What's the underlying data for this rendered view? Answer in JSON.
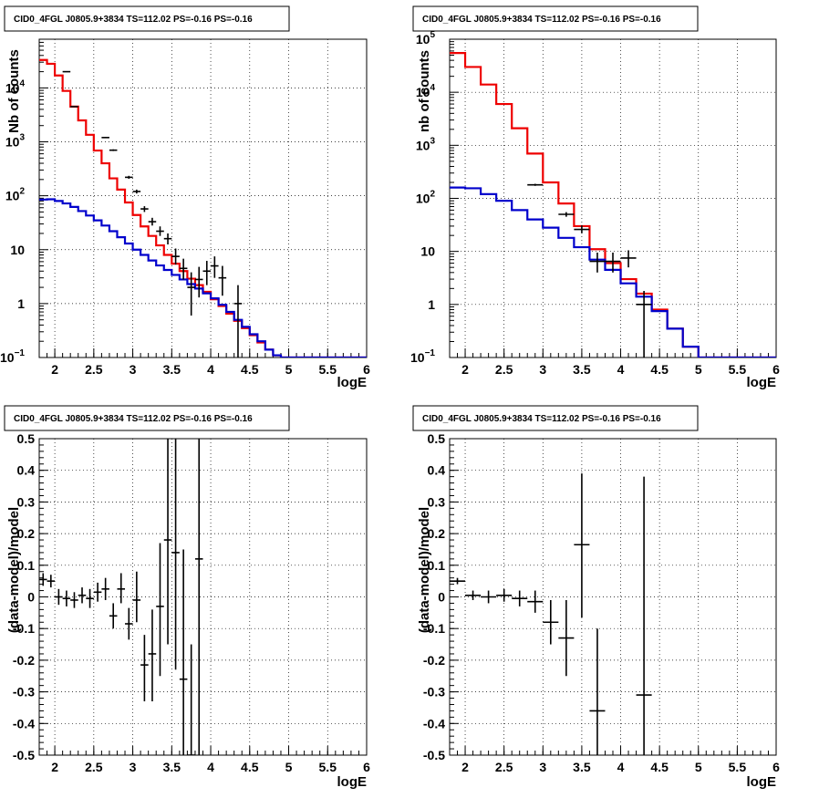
{
  "chart_data": [
    {
      "type": "step-histogram",
      "title": "CID0_4FGL J0805.9+3834 TS=112.02 PS=-0.16 PS=-0.16",
      "xlabel": "logE",
      "ylabel": "Nb of counts",
      "xlim": [
        1.8,
        6.0
      ],
      "ylim": [
        0.1,
        80000
      ],
      "yscale": "log",
      "grid": true,
      "xticks": [
        "2",
        "2.5",
        "3",
        "3.5",
        "4",
        "4.5",
        "5",
        "5.5",
        "6"
      ],
      "yticks": [
        {
          "v": 0.1,
          "t": "10",
          "sup": "−1"
        },
        {
          "v": 1,
          "t": "1"
        },
        {
          "v": 10,
          "t": "10"
        },
        {
          "v": 100,
          "t": "10",
          "sup": "2"
        },
        {
          "v": 1000,
          "t": "10",
          "sup": "3"
        },
        {
          "v": 10000,
          "t": "10",
          "sup": "4"
        }
      ],
      "colors": {
        "total": "#ee0000",
        "component": "#0000cc",
        "data": "#000000"
      },
      "bin_edges": [
        1.8,
        1.9,
        2.0,
        2.1,
        2.2,
        2.3,
        2.4,
        2.5,
        2.6,
        2.7,
        2.8,
        2.9,
        3.0,
        3.1,
        3.2,
        3.3,
        3.4,
        3.5,
        3.6,
        3.7,
        3.8,
        3.9,
        4.0,
        4.1,
        4.2,
        4.3,
        4.4,
        4.5,
        4.6,
        4.7,
        4.8,
        4.9,
        5.0,
        5.1,
        5.2,
        5.3,
        5.4,
        5.5,
        5.6,
        5.7,
        5.8,
        5.9,
        6.0
      ],
      "series": [
        {
          "role": "total",
          "values": [
            33000,
            28000,
            17000,
            8800,
            4500,
            2500,
            1350,
            690,
            400,
            210,
            130,
            75,
            44,
            27,
            18,
            12,
            8,
            5.5,
            4,
            2.9,
            2.2,
            1.65,
            1.2,
            0.9,
            0.65,
            0.48,
            0.35,
            0.26,
            0.19,
            0.14,
            0.11,
            0.1,
            0.1,
            0.1,
            0.1,
            0.1,
            0.1,
            0.1,
            0.1,
            0.1,
            0.1,
            0.1
          ]
        },
        {
          "role": "component",
          "values": [
            85,
            86,
            80,
            72,
            62,
            52,
            43,
            35,
            28,
            22,
            17,
            13,
            10,
            8,
            6.3,
            5.1,
            4.2,
            3.4,
            2.8,
            2.3,
            1.9,
            1.55,
            1.25,
            0.95,
            0.7,
            0.5,
            0.37,
            0.27,
            0.2,
            0.14,
            0.11,
            0.1,
            0.1,
            0.1,
            0.1,
            0.1,
            0.1,
            0.1,
            0.1,
            0.1,
            0.1,
            0.1
          ]
        }
      ],
      "points": [
        {
          "x": 2.15,
          "y": 20000,
          "xe": 0.05,
          "ylo": 19800,
          "yhi": 20200
        },
        {
          "x": 2.25,
          "y": 4500,
          "xe": 0.05,
          "ylo": 4430,
          "yhi": 4570
        },
        {
          "x": 2.65,
          "y": 1200,
          "xe": 0.05,
          "ylo": 1170,
          "yhi": 1230
        },
        {
          "x": 2.75,
          "y": 700,
          "xe": 0.05,
          "ylo": 675,
          "yhi": 725
        },
        {
          "x": 2.95,
          "y": 220,
          "xe": 0.05,
          "ylo": 206,
          "yhi": 234
        },
        {
          "x": 3.05,
          "y": 120,
          "xe": 0.05,
          "ylo": 110,
          "yhi": 130
        },
        {
          "x": 3.15,
          "y": 57,
          "xe": 0.05,
          "ylo": 50,
          "yhi": 64
        },
        {
          "x": 3.25,
          "y": 33,
          "xe": 0.05,
          "ylo": 28,
          "yhi": 39
        },
        {
          "x": 3.35,
          "y": 22,
          "xe": 0.05,
          "ylo": 18,
          "yhi": 27
        },
        {
          "x": 3.45,
          "y": 16,
          "xe": 0.05,
          "ylo": 12.5,
          "yhi": 20
        },
        {
          "x": 3.55,
          "y": 7.5,
          "xe": 0.05,
          "ylo": 5.3,
          "yhi": 10.5
        },
        {
          "x": 3.65,
          "y": 4.5,
          "xe": 0.05,
          "ylo": 2.8,
          "yhi": 6.8
        },
        {
          "x": 3.75,
          "y": 2.0,
          "xe": 0.05,
          "ylo": 0.6,
          "yhi": 3.8
        },
        {
          "x": 3.85,
          "y": 2.8,
          "xe": 0.05,
          "ylo": 1.3,
          "yhi": 4.8
        },
        {
          "x": 3.95,
          "y": 4.0,
          "xe": 0.05,
          "ylo": 2.2,
          "yhi": 6.2
        },
        {
          "x": 4.05,
          "y": 5.0,
          "xe": 0.05,
          "ylo": 3.0,
          "yhi": 7.5
        },
        {
          "x": 4.15,
          "y": 3.0,
          "xe": 0.05,
          "ylo": 1.4,
          "yhi": 5.0
        },
        {
          "x": 4.35,
          "y": 1.0,
          "xe": 0.05,
          "ylo": 0.1,
          "yhi": 2.2
        }
      ]
    },
    {
      "type": "step-histogram",
      "title": "CID0_4FGL J0805.9+3834 TS=112.02 PS=-0.16 PS=-0.16",
      "xlabel": "logE",
      "ylabel": "nb of counts",
      "xlim": [
        1.8,
        6.0
      ],
      "ylim": [
        0.1,
        100000
      ],
      "yscale": "log",
      "grid": true,
      "xticks": [
        "2",
        "2.5",
        "3",
        "3.5",
        "4",
        "4.5",
        "5",
        "5.5",
        "6"
      ],
      "yticks": [
        {
          "v": 0.1,
          "t": "10",
          "sup": "−1"
        },
        {
          "v": 1,
          "t": "1"
        },
        {
          "v": 10,
          "t": "10"
        },
        {
          "v": 100,
          "t": "10",
          "sup": "2"
        },
        {
          "v": 1000,
          "t": "10",
          "sup": "3"
        },
        {
          "v": 10000,
          "t": "10",
          "sup": "4"
        },
        {
          "v": 100000,
          "t": "10",
          "sup": "5"
        }
      ],
      "colors": {
        "total": "#ee0000",
        "component": "#0000cc",
        "data": "#000000"
      },
      "bin_edges": [
        1.8,
        2.0,
        2.2,
        2.4,
        2.6,
        2.8,
        3.0,
        3.2,
        3.4,
        3.6,
        3.8,
        4.0,
        4.2,
        4.4,
        4.6,
        4.8,
        5.0,
        5.2,
        5.4,
        5.6,
        5.8,
        6.0
      ],
      "series": [
        {
          "role": "total",
          "values": [
            55000,
            30000,
            14000,
            6000,
            2100,
            700,
            200,
            80,
            30,
            11,
            6,
            3,
            1.6,
            0.8,
            0.35,
            0.16,
            0.1,
            0.1,
            0.1,
            0.1,
            0.1
          ]
        },
        {
          "role": "component",
          "values": [
            160,
            155,
            120,
            90,
            60,
            40,
            28,
            18,
            12,
            7,
            4.5,
            2.5,
            1.4,
            0.75,
            0.35,
            0.16,
            0.1,
            0.1,
            0.1,
            0.1,
            0.1
          ]
        }
      ],
      "points": [
        {
          "x": 2.9,
          "y": 180,
          "xe": 0.1,
          "ylo": 172,
          "yhi": 188
        },
        {
          "x": 3.3,
          "y": 50,
          "xe": 0.1,
          "ylo": 45,
          "yhi": 55
        },
        {
          "x": 3.5,
          "y": 26,
          "xe": 0.1,
          "ylo": 22,
          "yhi": 31
        },
        {
          "x": 3.7,
          "y": 6.5,
          "xe": 0.1,
          "ylo": 4.0,
          "yhi": 9.5
        },
        {
          "x": 3.9,
          "y": 6.5,
          "xe": 0.1,
          "ylo": 4.0,
          "yhi": 9.5
        },
        {
          "x": 4.1,
          "y": 7.5,
          "xe": 0.1,
          "ylo": 5.0,
          "yhi": 10.5
        },
        {
          "x": 4.3,
          "y": 1.0,
          "xe": 0.1,
          "ylo": 0.1,
          "yhi": 1.8
        }
      ]
    },
    {
      "type": "scatter",
      "title": "CID0_4FGL J0805.9+3834 TS=112.02 PS=-0.16 PS=-0.16",
      "xlabel": "logE",
      "ylabel": "(data-model)/model",
      "xlim": [
        1.8,
        6.0
      ],
      "ylim": [
        -0.5,
        0.5
      ],
      "grid": true,
      "xticks": [
        "2",
        "2.5",
        "3",
        "3.5",
        "4",
        "4.5",
        "5",
        "5.5",
        "6"
      ],
      "yticks": [
        "-0.5",
        "-0.4",
        "-0.3",
        "-0.2",
        "-0.1",
        "0",
        "0.1",
        "0.2",
        "0.3",
        "0.4",
        "0.5"
      ],
      "points": [
        {
          "x": 1.85,
          "y": 0.055,
          "xe": 0.05,
          "ylo": 0.035,
          "yhi": 0.075
        },
        {
          "x": 1.95,
          "y": 0.05,
          "xe": 0.05,
          "ylo": 0.03,
          "yhi": 0.07
        },
        {
          "x": 2.05,
          "y": 0.0,
          "xe": 0.05,
          "ylo": -0.025,
          "yhi": 0.025
        },
        {
          "x": 2.15,
          "y": -0.005,
          "xe": 0.05,
          "ylo": -0.03,
          "yhi": 0.02
        },
        {
          "x": 2.25,
          "y": -0.01,
          "xe": 0.05,
          "ylo": -0.035,
          "yhi": 0.015
        },
        {
          "x": 2.35,
          "y": 0.005,
          "xe": 0.05,
          "ylo": -0.02,
          "yhi": 0.03
        },
        {
          "x": 2.45,
          "y": -0.005,
          "xe": 0.05,
          "ylo": -0.035,
          "yhi": 0.025
        },
        {
          "x": 2.55,
          "y": 0.015,
          "xe": 0.05,
          "ylo": -0.015,
          "yhi": 0.045
        },
        {
          "x": 2.65,
          "y": 0.025,
          "xe": 0.05,
          "ylo": -0.01,
          "yhi": 0.06
        },
        {
          "x": 2.75,
          "y": -0.06,
          "xe": 0.05,
          "ylo": -0.1,
          "yhi": -0.02
        },
        {
          "x": 2.85,
          "y": 0.025,
          "xe": 0.05,
          "ylo": -0.02,
          "yhi": 0.075
        },
        {
          "x": 2.95,
          "y": -0.085,
          "xe": 0.05,
          "ylo": -0.135,
          "yhi": -0.035
        },
        {
          "x": 3.05,
          "y": -0.01,
          "xe": 0.05,
          "ylo": -0.08,
          "yhi": 0.08
        },
        {
          "x": 3.15,
          "y": -0.215,
          "xe": 0.05,
          "ylo": -0.33,
          "yhi": -0.12
        },
        {
          "x": 3.25,
          "y": -0.18,
          "xe": 0.05,
          "ylo": -0.33,
          "yhi": -0.04
        },
        {
          "x": 3.35,
          "y": -0.03,
          "xe": 0.05,
          "ylo": -0.25,
          "yhi": 0.17
        },
        {
          "x": 3.45,
          "y": 0.18,
          "xe": 0.05,
          "ylo": -0.15,
          "yhi": 0.5
        },
        {
          "x": 3.55,
          "y": 0.14,
          "xe": 0.05,
          "ylo": -0.23,
          "yhi": 0.5
        },
        {
          "x": 3.65,
          "y": -0.26,
          "xe": 0.05,
          "ylo": -0.5,
          "yhi": 0.15
        },
        {
          "x": 3.75,
          "y": -0.5,
          "xe": 0.05,
          "ylo": -0.5,
          "yhi": -0.15
        },
        {
          "x": 3.85,
          "y": 0.12,
          "xe": 0.05,
          "ylo": -0.5,
          "yhi": 0.5
        }
      ]
    },
    {
      "type": "scatter",
      "title": "CID0_4FGL J0805.9+3834 TS=112.02 PS=-0.16 PS=-0.16",
      "xlabel": "logE",
      "ylabel": "(data-model)/model",
      "xlim": [
        1.8,
        6.0
      ],
      "ylim": [
        -0.5,
        0.5
      ],
      "grid": true,
      "xticks": [
        "2",
        "2.5",
        "3",
        "3.5",
        "4",
        "4.5",
        "5",
        "5.5",
        "6"
      ],
      "yticks": [
        "-0.5",
        "-0.4",
        "-0.3",
        "-0.2",
        "-0.1",
        "0",
        "0.1",
        "0.2",
        "0.3",
        "0.4",
        "0.5"
      ],
      "points": [
        {
          "x": 1.9,
          "y": 0.05,
          "xe": 0.1,
          "ylo": 0.04,
          "yhi": 0.06
        },
        {
          "x": 2.1,
          "y": 0.005,
          "xe": 0.1,
          "ylo": -0.01,
          "yhi": 0.02
        },
        {
          "x": 2.3,
          "y": 0.0,
          "xe": 0.1,
          "ylo": -0.02,
          "yhi": 0.02
        },
        {
          "x": 2.5,
          "y": 0.005,
          "xe": 0.1,
          "ylo": -0.015,
          "yhi": 0.025
        },
        {
          "x": 2.7,
          "y": -0.005,
          "xe": 0.1,
          "ylo": -0.03,
          "yhi": 0.02
        },
        {
          "x": 2.9,
          "y": -0.015,
          "xe": 0.1,
          "ylo": -0.05,
          "yhi": 0.02
        },
        {
          "x": 3.1,
          "y": -0.08,
          "xe": 0.1,
          "ylo": -0.15,
          "yhi": -0.01
        },
        {
          "x": 3.3,
          "y": -0.13,
          "xe": 0.1,
          "ylo": -0.25,
          "yhi": -0.01
        },
        {
          "x": 3.5,
          "y": 0.165,
          "xe": 0.1,
          "ylo": -0.065,
          "yhi": 0.39
        },
        {
          "x": 3.7,
          "y": -0.36,
          "xe": 0.1,
          "ylo": -0.5,
          "yhi": -0.1
        },
        {
          "x": 4.3,
          "y": -0.31,
          "xe": 0.1,
          "ylo": -0.5,
          "yhi": 0.38
        }
      ]
    }
  ]
}
